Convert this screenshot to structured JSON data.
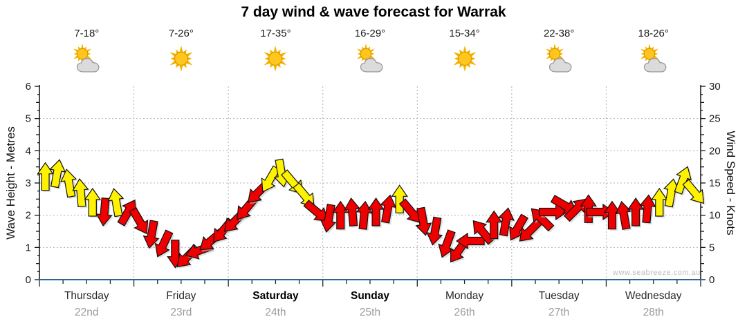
{
  "page": {
    "title": "7 day wind & wave forecast for Warrak",
    "watermark": "www.seabreeze.com.au"
  },
  "chart_data": {
    "type": "wind-arrows-time-series",
    "title": "7 day wind & wave forecast for Warrak",
    "left_axis": {
      "label": "Wave Height - Metres",
      "min": 0,
      "max": 6,
      "ticks": [
        0,
        1,
        2,
        3,
        4,
        5,
        6
      ]
    },
    "right_axis": {
      "label": "Wind Speed - Knots",
      "min": 0,
      "max": 30,
      "ticks": [
        0,
        5,
        10,
        15,
        20,
        25,
        30
      ]
    },
    "grid": {
      "horizontal_at_knots": [
        5,
        10,
        15,
        20,
        25
      ],
      "vertical_at_day_boundaries": true
    },
    "legend_colors": {
      "yellow": "#FFF200",
      "red": "#EE0000"
    },
    "days": [
      {
        "name": "Thursday",
        "date": "22nd",
        "temp_range": "7-18°",
        "sky": "partly-cloudy",
        "weekend": false
      },
      {
        "name": "Friday",
        "date": "23rd",
        "temp_range": "7-26°",
        "sky": "sunny",
        "weekend": false
      },
      {
        "name": "Saturday",
        "date": "24th",
        "temp_range": "17-35°",
        "sky": "sunny",
        "weekend": true
      },
      {
        "name": "Sunday",
        "date": "25th",
        "temp_range": "16-29°",
        "sky": "partly-cloudy",
        "weekend": true
      },
      {
        "name": "Monday",
        "date": "26th",
        "temp_range": "15-34°",
        "sky": "sunny",
        "weekend": false
      },
      {
        "name": "Tuesday",
        "date": "27th",
        "temp_range": "22-38°",
        "sky": "partly-cloudy",
        "weekend": false
      },
      {
        "name": "Wednesday",
        "date": "28th",
        "temp_range": "18-26°",
        "sky": "partly-cloudy",
        "weekend": false
      }
    ],
    "arrows_format": [
      "hour",
      "knots",
      "direction_deg_pointing",
      "color"
    ],
    "arrows": [
      [
        1.5,
        16,
        0,
        "yellow"
      ],
      [
        4.5,
        16.5,
        10,
        "yellow"
      ],
      [
        7.5,
        15,
        350,
        "yellow"
      ],
      [
        10.5,
        13.5,
        355,
        "yellow"
      ],
      [
        13.5,
        12,
        0,
        "yellow"
      ],
      [
        16.5,
        10.5,
        185,
        "red"
      ],
      [
        19.5,
        12,
        350,
        "yellow"
      ],
      [
        22.5,
        10.5,
        30,
        "red"
      ],
      [
        25.5,
        9,
        150,
        "red"
      ],
      [
        28.5,
        7,
        190,
        "red"
      ],
      [
        31.5,
        5.5,
        205,
        "red"
      ],
      [
        34.5,
        4,
        180,
        "red"
      ],
      [
        37.5,
        3.5,
        225,
        "red"
      ],
      [
        40.5,
        4.5,
        250,
        "red"
      ],
      [
        43.5,
        6,
        230,
        "red"
      ],
      [
        46.5,
        7.5,
        220,
        "red"
      ],
      [
        49.5,
        9,
        225,
        "red"
      ],
      [
        52.5,
        11,
        220,
        "red"
      ],
      [
        55.5,
        13.5,
        225,
        "red"
      ],
      [
        58.5,
        15.5,
        210,
        "yellow"
      ],
      [
        61.5,
        16.5,
        170,
        "yellow"
      ],
      [
        64.5,
        15,
        140,
        "yellow"
      ],
      [
        67.5,
        13,
        140,
        "yellow"
      ],
      [
        70.5,
        10.5,
        130,
        "red"
      ],
      [
        73.5,
        9.5,
        190,
        "red"
      ],
      [
        76.5,
        10,
        0,
        "red"
      ],
      [
        79.5,
        10.5,
        355,
        "red"
      ],
      [
        82.5,
        10,
        5,
        "red"
      ],
      [
        85.5,
        10.5,
        0,
        "red"
      ],
      [
        88.5,
        11,
        10,
        "red"
      ],
      [
        91.5,
        12.5,
        0,
        "yellow"
      ],
      [
        94.5,
        10.5,
        140,
        "red"
      ],
      [
        97.5,
        9,
        170,
        "red"
      ],
      [
        100.5,
        7.5,
        190,
        "red"
      ],
      [
        103.5,
        5.5,
        200,
        "red"
      ],
      [
        106.5,
        4.5,
        215,
        "red"
      ],
      [
        109.5,
        6,
        270,
        "red"
      ],
      [
        112.5,
        7.5,
        320,
        "red"
      ],
      [
        115.5,
        8.5,
        0,
        "red"
      ],
      [
        118.5,
        9,
        10,
        "red"
      ],
      [
        121.5,
        8,
        210,
        "red"
      ],
      [
        124.5,
        7.5,
        225,
        "red"
      ],
      [
        127.5,
        9.5,
        315,
        "red"
      ],
      [
        130.5,
        10.5,
        90,
        "red"
      ],
      [
        133.5,
        11.5,
        120,
        "red"
      ],
      [
        136.5,
        11,
        45,
        "red"
      ],
      [
        139.5,
        11,
        0,
        "red"
      ],
      [
        142.5,
        10.5,
        90,
        "red"
      ],
      [
        145.5,
        10,
        0,
        "red"
      ],
      [
        148.5,
        10,
        350,
        "red"
      ],
      [
        151.5,
        10.5,
        0,
        "red"
      ],
      [
        154.5,
        11,
        5,
        "red"
      ],
      [
        157.5,
        12,
        0,
        "yellow"
      ],
      [
        160.5,
        13.5,
        10,
        "yellow"
      ],
      [
        163.5,
        15.5,
        20,
        "yellow"
      ],
      [
        166.5,
        13.5,
        140,
        "yellow"
      ]
    ]
  }
}
